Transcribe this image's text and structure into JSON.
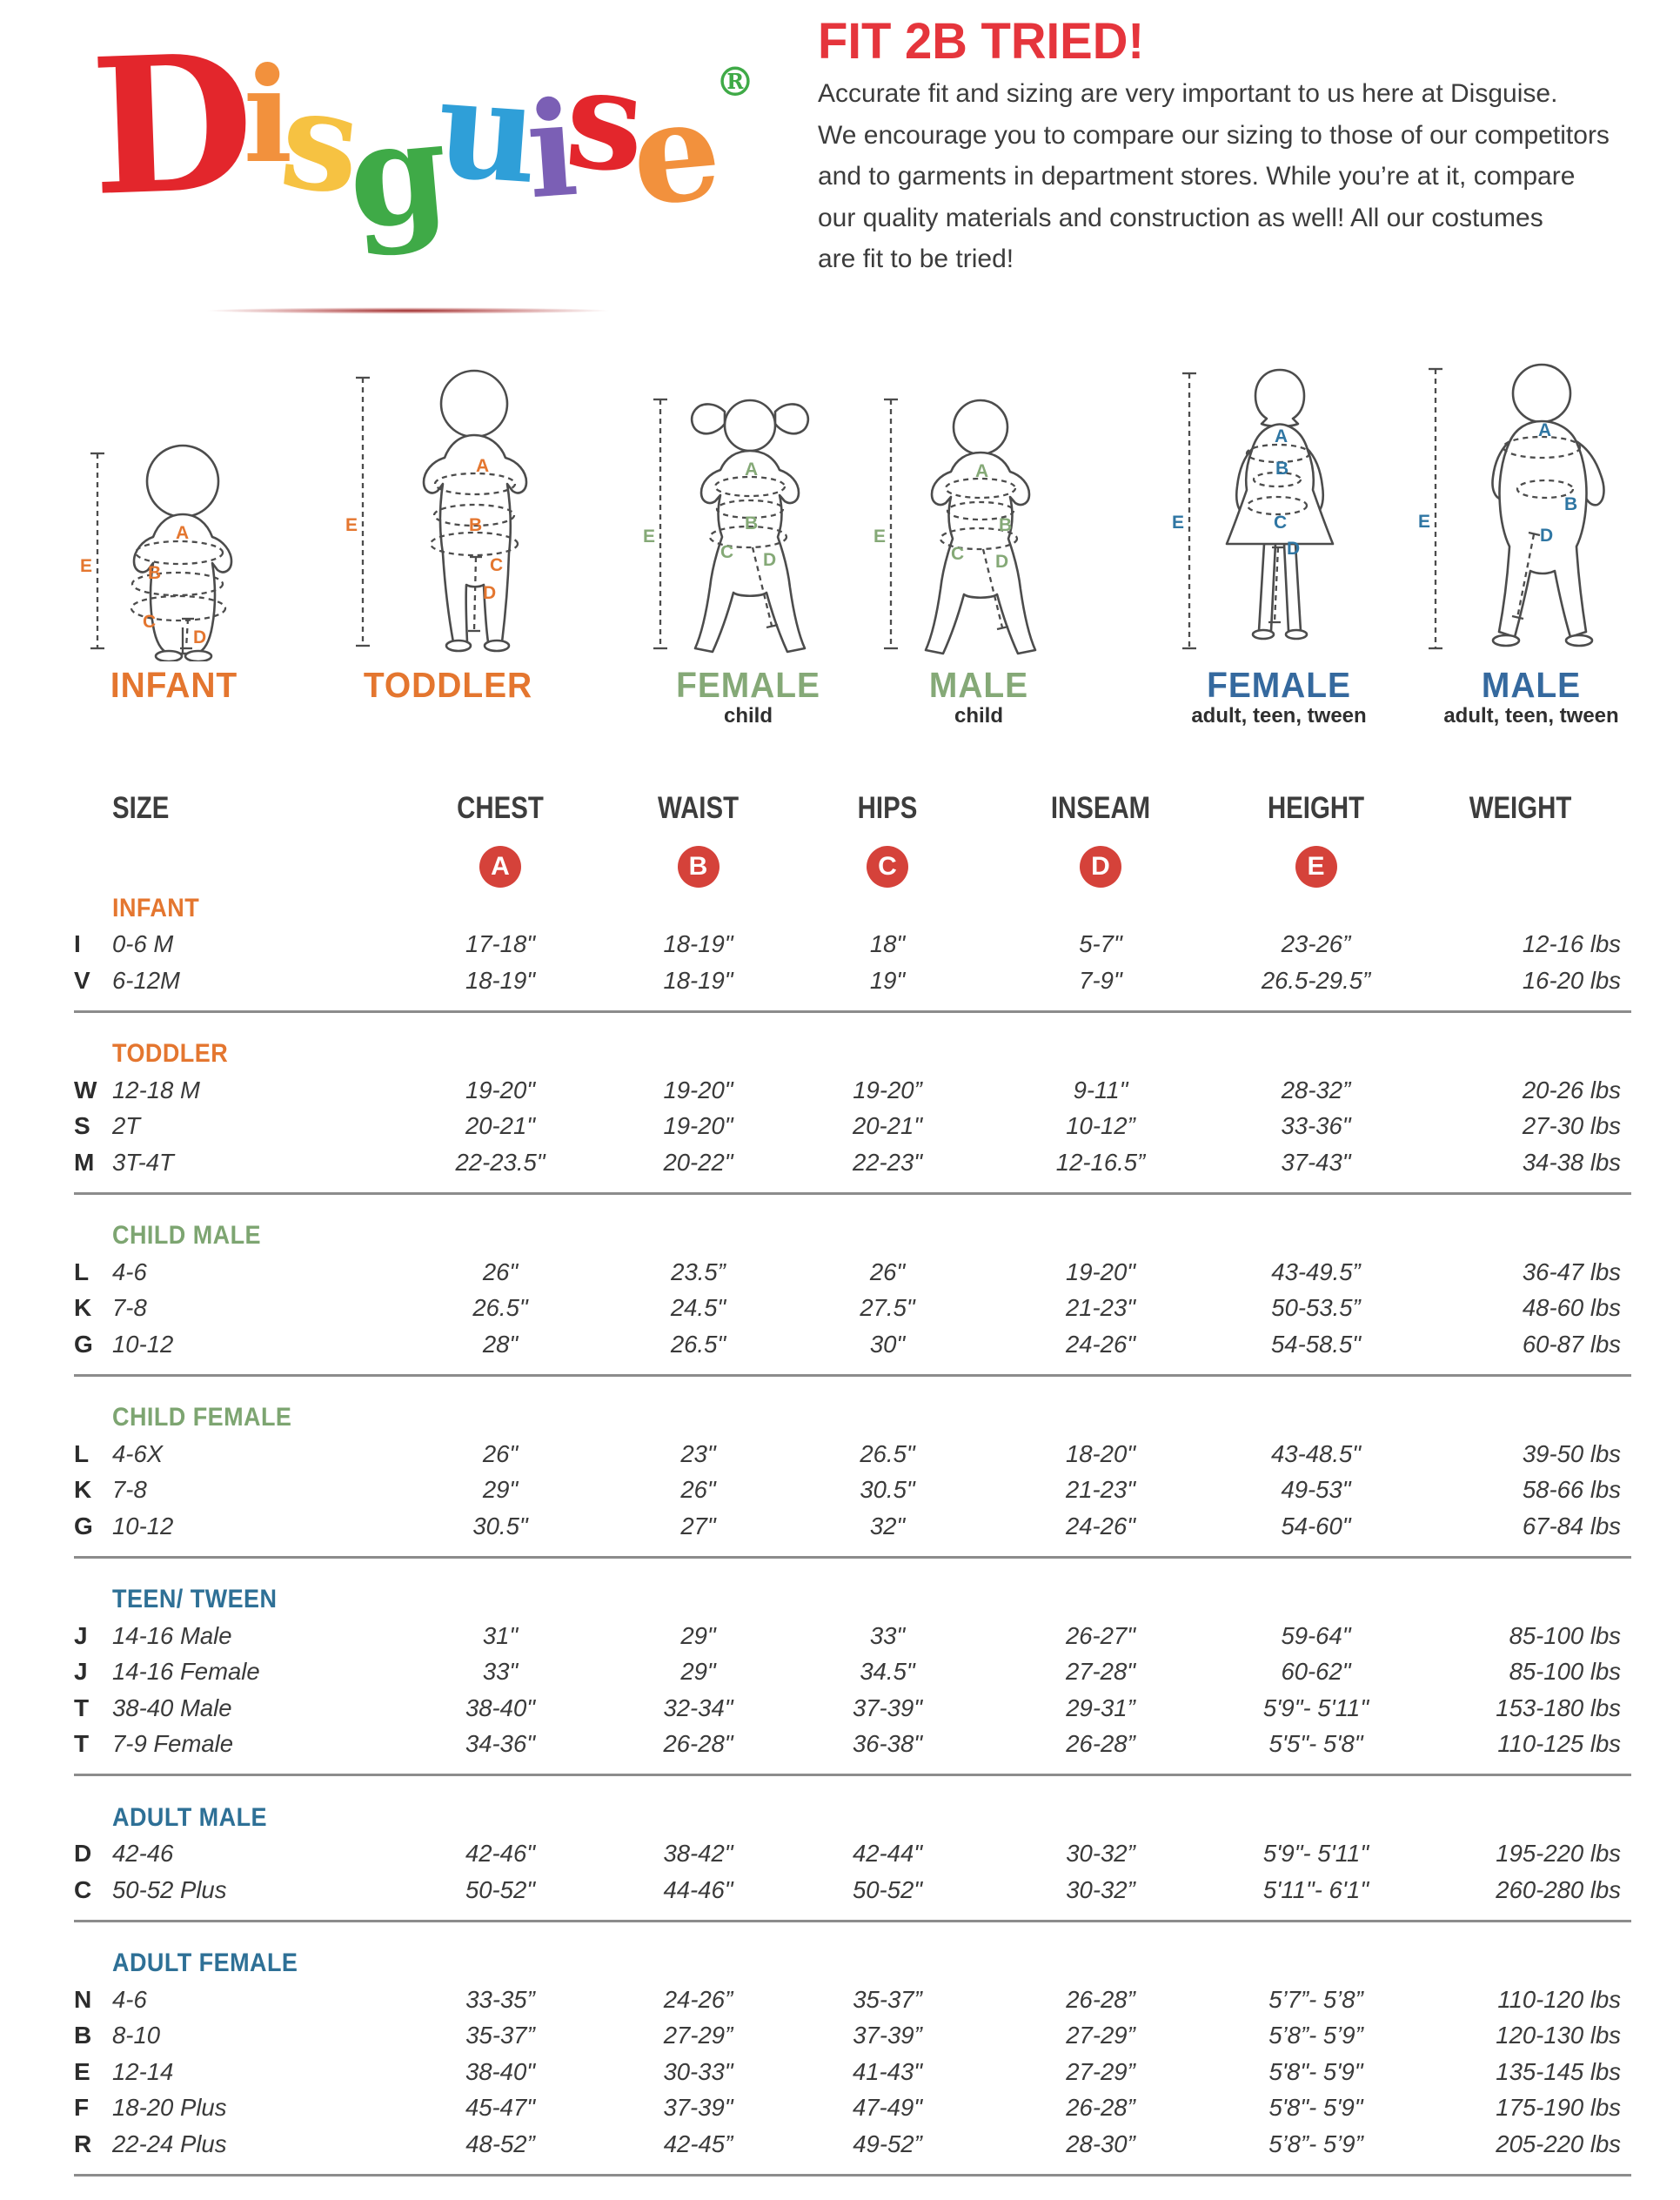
{
  "logo": {
    "word": "Disguise",
    "letters": [
      {
        "ch": "D",
        "color": "#e3262c"
      },
      {
        "ch": "i",
        "color": "#f2913d"
      },
      {
        "ch": "s",
        "color": "#f6c242"
      },
      {
        "ch": "g",
        "color": "#3faa47"
      },
      {
        "ch": "u",
        "color": "#2f9fd8"
      },
      {
        "ch": "i",
        "color": "#7b5fb5"
      },
      {
        "ch": "s",
        "color": "#e3262c"
      },
      {
        "ch": "e",
        "color": "#f2913d"
      }
    ],
    "registered_mark": "®",
    "registered_color": "#3faa47"
  },
  "header": {
    "title": "FIT 2B TRIED!",
    "title_color": "#e5353c",
    "paragraph_lines": [
      "Accurate fit and sizing are very important to us here at Disguise.",
      "We encourage you to compare our sizing to those of our competitors",
      "and to garments in department stores. While you’re at it, compare",
      "our quality materials and construction as well! All our costumes",
      "are fit to be tried!"
    ]
  },
  "measure_labels": [
    "A",
    "B",
    "C",
    "D",
    "E"
  ],
  "figures": [
    {
      "label": "INFANT",
      "sublabel": "",
      "color_group": "orange"
    },
    {
      "label": "TODDLER",
      "sublabel": "",
      "color_group": "orange"
    },
    {
      "label": "FEMALE",
      "sublabel": "child",
      "color_group": "green"
    },
    {
      "label": "MALE",
      "sublabel": "child",
      "color_group": "green"
    },
    {
      "label": "FEMALE",
      "sublabel": "adult, teen, tween",
      "color_group": "blue"
    },
    {
      "label": "MALE",
      "sublabel": "adult, teen, tween",
      "color_group": "blue"
    }
  ],
  "table": {
    "headers": [
      "SIZE",
      "CHEST",
      "WAIST",
      "HIPS",
      "INSEAM",
      "HEIGHT",
      "WEIGHT"
    ],
    "badges": [
      "A",
      "B",
      "C",
      "D",
      "E"
    ],
    "badge_color": "#d5423a",
    "section_colors": {
      "orange": "#e4762f",
      "green": "#7da571",
      "blue": "#2e7096"
    },
    "sections": [
      {
        "name": "INFANT",
        "color": "#e4762f",
        "rows": [
          {
            "letter": "I",
            "size": "0-6 M",
            "chest": "17-18\"",
            "waist": "18-19\"",
            "hips": "18\"",
            "inseam": "5-7\"",
            "height": "23-26”",
            "weight": "12-16 lbs"
          },
          {
            "letter": "V",
            "size": "6-12M",
            "chest": "18-19\"",
            "waist": "18-19\"",
            "hips": "19\"",
            "inseam": "7-9\"",
            "height": "26.5-29.5”",
            "weight": "16-20 lbs"
          }
        ]
      },
      {
        "name": "TODDLER",
        "color": "#e4762f",
        "rows": [
          {
            "letter": "W",
            "size": "12-18 M",
            "chest": "19-20\"",
            "waist": "19-20\"",
            "hips": "19-20”",
            "inseam": "9-11\"",
            "height": "28-32”",
            "weight": "20-26 lbs"
          },
          {
            "letter": "S",
            "size": "2T",
            "chest": "20-21\"",
            "waist": "19-20\"",
            "hips": "20-21\"",
            "inseam": "10-12”",
            "height": "33-36\"",
            "weight": "27-30 lbs"
          },
          {
            "letter": "M",
            "size": "3T-4T",
            "chest": "22-23.5\"",
            "waist": "20-22\"",
            "hips": "22-23\"",
            "inseam": "12-16.5”",
            "height": "37-43\"",
            "weight": "34-38 lbs"
          }
        ]
      },
      {
        "name": "CHILD MALE",
        "color": "#7da571",
        "rows": [
          {
            "letter": "L",
            "size": "4-6",
            "chest": "26\"",
            "waist": "23.5”",
            "hips": "26\"",
            "inseam": "19-20\"",
            "height": "43-49.5”",
            "weight": "36-47 lbs"
          },
          {
            "letter": "K",
            "size": "7-8",
            "chest": "26.5\"",
            "waist": "24.5\"",
            "hips": "27.5\"",
            "inseam": "21-23\"",
            "height": "50-53.5”",
            "weight": "48-60 lbs"
          },
          {
            "letter": "G",
            "size": "10-12",
            "chest": "28\"",
            "waist": "26.5\"",
            "hips": "30\"",
            "inseam": "24-26\"",
            "height": "54-58.5\"",
            "weight": "60-87 lbs"
          }
        ]
      },
      {
        "name": "CHILD FEMALE",
        "color": "#7da571",
        "rows": [
          {
            "letter": "L",
            "size": "4-6X",
            "chest": "26\"",
            "waist": "23\"",
            "hips": "26.5\"",
            "inseam": "18-20\"",
            "height": "43-48.5\"",
            "weight": "39-50 lbs"
          },
          {
            "letter": "K",
            "size": "7-8",
            "chest": "29\"",
            "waist": "26\"",
            "hips": "30.5\"",
            "inseam": "21-23\"",
            "height": "49-53\"",
            "weight": "58-66 lbs"
          },
          {
            "letter": "G",
            "size": "10-12",
            "chest": "30.5\"",
            "waist": "27\"",
            "hips": "32\"",
            "inseam": "24-26\"",
            "height": "54-60\"",
            "weight": "67-84 lbs"
          }
        ]
      },
      {
        "name": "TEEN/ TWEEN",
        "color": "#2e7096",
        "rows": [
          {
            "letter": "J",
            "size": "14-16 Male",
            "chest": "31\"",
            "waist": "29\"",
            "hips": "33\"",
            "inseam": "26-27\"",
            "height": "59-64\"",
            "weight": "85-100 lbs"
          },
          {
            "letter": "J",
            "size": "14-16 Female",
            "chest": "33\"",
            "waist": "29\"",
            "hips": "34.5\"",
            "inseam": "27-28\"",
            "height": "60-62\"",
            "weight": "85-100 lbs"
          },
          {
            "letter": "T",
            "size": "38-40 Male",
            "chest": "38-40\"",
            "waist": "32-34\"",
            "hips": "37-39\"",
            "inseam": "29-31”",
            "height": "5'9\"- 5'11\"",
            "weight": "153-180 lbs"
          },
          {
            "letter": "T",
            "size": "7-9 Female",
            "chest": "34-36\"",
            "waist": "26-28\"",
            "hips": "36-38\"",
            "inseam": "26-28”",
            "height": "5'5\"- 5'8\"",
            "weight": "110-125 lbs"
          }
        ]
      },
      {
        "name": "ADULT MALE",
        "color": "#2e7096",
        "rows": [
          {
            "letter": "D",
            "size": "42-46",
            "chest": "42-46\"",
            "waist": "38-42\"",
            "hips": "42-44\"",
            "inseam": "30-32”",
            "height": "5'9\"- 5'11\"",
            "weight": "195-220 lbs"
          },
          {
            "letter": "C",
            "size": "50-52 Plus",
            "chest": "50-52\"",
            "waist": "44-46\"",
            "hips": "50-52\"",
            "inseam": "30-32”",
            "height": "5'11\"- 6'1\"",
            "weight": "260-280 lbs"
          }
        ]
      },
      {
        "name": "ADULT FEMALE",
        "color": "#2e7096",
        "rows": [
          {
            "letter": "N",
            "size": "4-6",
            "chest": "33-35”",
            "waist": "24-26”",
            "hips": "35-37”",
            "inseam": "26-28”",
            "height": "5’7”- 5’8”",
            "weight": "110-120 lbs"
          },
          {
            "letter": "B",
            "size": "8-10",
            "chest": "35-37”",
            "waist": "27-29”",
            "hips": "37-39”",
            "inseam": "27-29”",
            "height": "5’8”- 5’9”",
            "weight": "120-130 lbs"
          },
          {
            "letter": "E",
            "size": "12-14",
            "chest": "38-40\"",
            "waist": "30-33\"",
            "hips": "41-43\"",
            "inseam": "27-29”",
            "height": "5'8\"- 5'9\"",
            "weight": "135-145 lbs"
          },
          {
            "letter": "F",
            "size": "18-20 Plus",
            "chest": "45-47\"",
            "waist": "37-39\"",
            "hips": "47-49\"",
            "inseam": "26-28”",
            "height": "5'8\"- 5'9\"",
            "weight": "175-190 lbs"
          },
          {
            "letter": "R",
            "size": "22-24 Plus",
            "chest": "48-52”",
            "waist": "42-45”",
            "hips": "49-52”",
            "inseam": "28-30”",
            "height": "5’8”- 5’9”",
            "weight": "205-220 lbs"
          }
        ]
      }
    ]
  }
}
